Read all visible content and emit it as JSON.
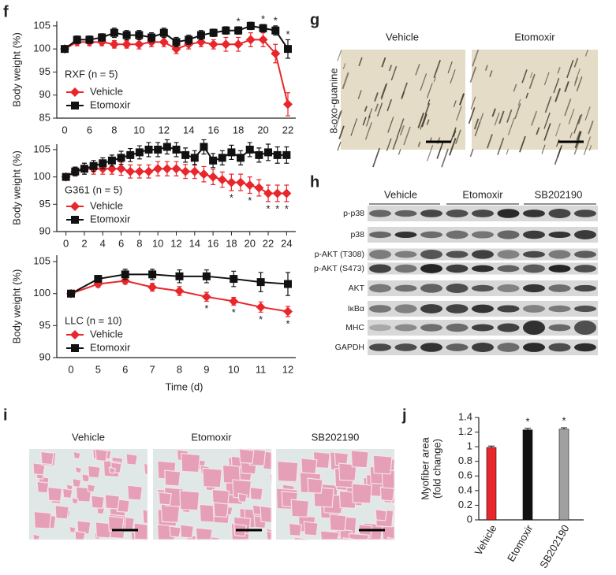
{
  "chart_data": [
    {
      "type": "line",
      "panel_label": "f",
      "title": "RXF (n = 5)",
      "ylabel": "Body weight (%)",
      "categories": [
        "0",
        null,
        "6",
        null,
        "8",
        null,
        "10",
        null,
        "12",
        null,
        "14",
        null,
        "16",
        null,
        "18",
        null,
        "20",
        null,
        "22"
      ],
      "ylim": [
        85,
        106
      ],
      "yticks": [
        85,
        90,
        95,
        100,
        105
      ],
      "series": [
        {
          "name": "Vehicle",
          "color": "#e8262b",
          "marker": "diamond",
          "values": [
            100,
            101.5,
            101.5,
            101.5,
            101,
            101,
            101,
            101.5,
            101.5,
            100,
            101,
            101.5,
            101,
            101,
            101,
            102,
            102,
            99,
            88
          ],
          "errors": [
            0.3,
            0.8,
            0.8,
            0.8,
            0.8,
            0.8,
            1,
            1,
            1,
            1,
            1,
            1,
            1,
            1.5,
            1.5,
            1.5,
            1.5,
            2,
            2.5
          ],
          "significance": [
            null,
            null,
            null,
            null,
            null,
            null,
            null,
            null,
            null,
            null,
            null,
            null,
            null,
            null,
            "*",
            null,
            "*",
            "*",
            "*"
          ]
        },
        {
          "name": "Etomoxir",
          "color": "#111111",
          "marker": "square",
          "values": [
            100,
            102,
            102,
            102.5,
            103.5,
            103,
            103,
            102.5,
            103.5,
            101.5,
            102,
            103,
            103.5,
            104,
            104,
            105,
            104.5,
            104,
            100
          ],
          "errors": [
            0.3,
            0.8,
            0.8,
            0.8,
            1,
            1,
            1,
            1,
            1,
            1,
            1,
            1,
            0.8,
            0.8,
            0.8,
            0.8,
            0.8,
            1,
            2
          ]
        }
      ]
    },
    {
      "type": "line",
      "title": "G361 (n = 5)",
      "ylabel": "Body weight (%)",
      "x": [
        0,
        1,
        2,
        3,
        4,
        5,
        6,
        7,
        8,
        9,
        10,
        11,
        12,
        13,
        14,
        15,
        16,
        17,
        18,
        19,
        20,
        21,
        22,
        23,
        24
      ],
      "xlim": [
        -1,
        25
      ],
      "xticks": [
        0,
        2,
        4,
        6,
        8,
        10,
        12,
        14,
        16,
        18,
        20,
        22,
        24
      ],
      "ylim": [
        90,
        106
      ],
      "yticks": [
        90,
        95,
        100,
        105
      ],
      "series": [
        {
          "name": "Vehicle",
          "color": "#e8262b",
          "marker": "diamond",
          "values": [
            100,
            101,
            101.5,
            101.5,
            101.5,
            101.5,
            101.5,
            101,
            101,
            101,
            101.5,
            101.5,
            101.5,
            101,
            101,
            100.5,
            100,
            99.5,
            99,
            99,
            98.5,
            98,
            97,
            97,
            97
          ],
          "errors": [
            0.3,
            0.8,
            1,
            1,
            1,
            1,
            1.2,
            1.2,
            1.2,
            1.2,
            1.3,
            1.3,
            1.3,
            1.3,
            1.3,
            1.4,
            1.4,
            1.4,
            1.5,
            1.5,
            1.5,
            1.5,
            1.5,
            1.5,
            1.5
          ],
          "significance": [
            null,
            null,
            null,
            null,
            null,
            null,
            null,
            null,
            null,
            null,
            null,
            null,
            null,
            null,
            null,
            null,
            null,
            null,
            "*",
            null,
            "*",
            null,
            "*",
            "*",
            "*"
          ]
        },
        {
          "name": "Etomoxir",
          "color": "#111111",
          "marker": "square",
          "values": [
            100,
            101,
            101.5,
            102,
            102.5,
            103,
            103.5,
            104,
            104.5,
            105,
            105,
            105.5,
            105,
            104,
            103.5,
            105.5,
            103,
            103.5,
            104.5,
            103.5,
            105,
            104,
            104.5,
            104,
            104
          ],
          "errors": [
            0.3,
            0.8,
            1,
            1,
            1,
            1,
            1.2,
            1.2,
            1.2,
            1.3,
            1.3,
            1.3,
            1.3,
            1.3,
            1.3,
            1.3,
            1.3,
            1.3,
            1.3,
            1.3,
            1.3,
            1.3,
            1.5,
            1.5,
            1.5
          ]
        }
      ]
    },
    {
      "type": "line",
      "title": "LLC (n = 10)",
      "ylabel": "Body weight (%)",
      "xlabel": "Time (d)",
      "categories": [
        "0",
        "5",
        "6",
        "7",
        "8",
        "9",
        "10",
        "11",
        "12"
      ],
      "ylim": [
        90,
        106
      ],
      "yticks": [
        90,
        95,
        100,
        105
      ],
      "series": [
        {
          "name": "Vehicle",
          "color": "#e8262b",
          "marker": "diamond",
          "values": [
            100,
            101.5,
            102,
            101,
            100.4,
            99.5,
            98.8,
            97.9,
            97.2
          ],
          "errors": [
            0.3,
            0.5,
            0.5,
            0.6,
            0.7,
            0.7,
            0.6,
            0.8,
            0.8
          ],
          "significance": [
            null,
            null,
            null,
            null,
            null,
            "*",
            "*",
            "*",
            "*"
          ]
        },
        {
          "name": "Etomoxir",
          "color": "#111111",
          "marker": "square",
          "values": [
            100,
            102.3,
            103,
            103,
            102.7,
            102.7,
            102.3,
            101.8,
            101.5
          ],
          "errors": [
            0.3,
            0.5,
            0.8,
            0.8,
            1,
            1,
            1.2,
            1.5,
            1.8
          ]
        }
      ]
    },
    {
      "type": "bar",
      "panel_label": "j",
      "ylabel": [
        "Myofiber area",
        "(fold change)"
      ],
      "categories": [
        "Vehicle",
        "Etomoxir",
        "SB202190"
      ],
      "values": [
        0.99,
        1.23,
        1.24
      ],
      "errors": [
        0.02,
        0.02,
        0.02
      ],
      "colors": [
        "#e8262b",
        "#111111",
        "#a0a0a0"
      ],
      "significance": [
        null,
        "*",
        "*"
      ],
      "ylim": [
        0,
        1.4
      ],
      "yticks": [
        0,
        0.2,
        0.4,
        0.6,
        0.8,
        1.0,
        1.2,
        1.4
      ]
    }
  ],
  "panel_g": {
    "label": "g",
    "stain": "8-oxo-guanine",
    "columns": [
      "Vehicle",
      "Etomoxir"
    ]
  },
  "panel_h": {
    "label": "h",
    "groups": [
      "Vehicle",
      "Etomoxir",
      "SB202190"
    ],
    "rows": [
      "p-p38",
      "p38",
      "p-AKT (T308)",
      "p-AKT (S473)",
      "AKT",
      "IκBα",
      "MHC",
      "GAPDH"
    ]
  },
  "panel_i": {
    "label": "i",
    "columns": [
      "Vehicle",
      "Etomoxir",
      "SB202190"
    ]
  }
}
